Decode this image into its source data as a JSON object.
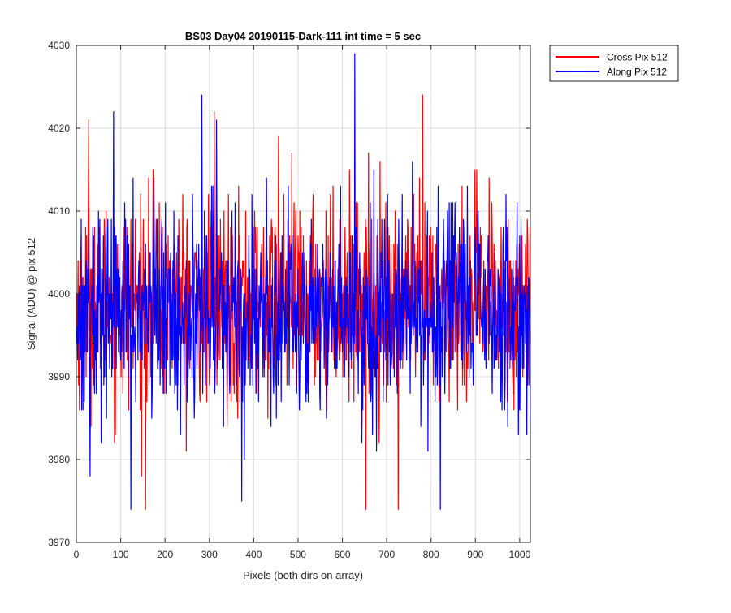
{
  "chart_data": {
    "type": "line",
    "title": "BS03 Day04 20190115-Dark-111 int time = 5 sec",
    "xlabel": "Pixels (both dirs on array)",
    "ylabel": "Signal (ADU) @ pix 512",
    "xlim": [
      0,
      1024
    ],
    "ylim": [
      3970,
      4030
    ],
    "x_ticks": [
      "0",
      "100",
      "200",
      "300",
      "400",
      "500",
      "600",
      "700",
      "800",
      "900",
      "1000"
    ],
    "y_ticks": [
      "3970",
      "3980",
      "3990",
      "4000",
      "4010",
      "4020",
      "4030"
    ],
    "grid": true,
    "legend_position": "outside-top-right",
    "series": [
      {
        "name": "Cross Pix 512",
        "color": "#ff0000",
        "mean": 3999,
        "std": 6,
        "n_points": 1024,
        "extremes": [
          [
            27,
            4021
          ],
          [
            155,
            3974
          ],
          [
            310,
            4022
          ],
          [
            652,
            3974
          ],
          [
            725,
            3974
          ],
          [
            780,
            4024
          ],
          [
            455,
            4019
          ]
        ]
      },
      {
        "name": "Along Pix 512",
        "color": "#0000ff",
        "mean": 3998,
        "std": 6,
        "n_points": 1024,
        "extremes": [
          [
            83,
            4022
          ],
          [
            122,
            3974
          ],
          [
            282,
            4024
          ],
          [
            315,
            4021
          ],
          [
            372,
            3975
          ],
          [
            627,
            4029
          ],
          [
            820,
            3974
          ],
          [
            30,
            3978
          ]
        ]
      }
    ]
  }
}
